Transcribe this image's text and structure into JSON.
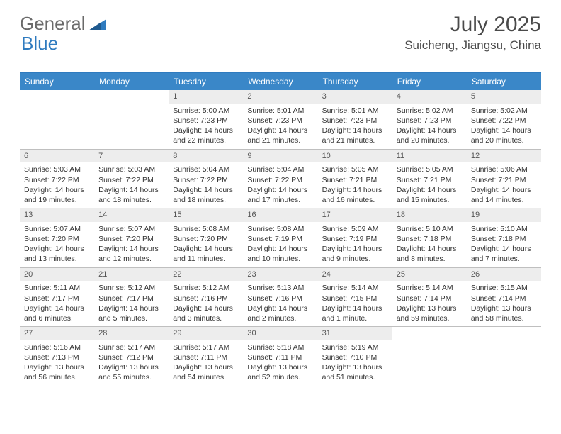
{
  "logo": {
    "part1": "General",
    "part2": "Blue"
  },
  "title": "July 2025",
  "location": "Suicheng, Jiangsu, China",
  "daynames": [
    "Sunday",
    "Monday",
    "Tuesday",
    "Wednesday",
    "Thursday",
    "Friday",
    "Saturday"
  ],
  "colors": {
    "header_bg": "#3a87c8",
    "header_text": "#ffffff",
    "daynum_bg": "#ededed",
    "border": "#bfbfbf",
    "logo_gray": "#6a6a6a",
    "logo_blue": "#2f7bbf"
  },
  "weeks": [
    [
      {
        "n": "",
        "sr": "",
        "ss": "",
        "dl": "",
        "empty": true
      },
      {
        "n": "",
        "sr": "",
        "ss": "",
        "dl": "",
        "empty": true
      },
      {
        "n": "1",
        "sr": "Sunrise: 5:00 AM",
        "ss": "Sunset: 7:23 PM",
        "dl": "Daylight: 14 hours and 22 minutes."
      },
      {
        "n": "2",
        "sr": "Sunrise: 5:01 AM",
        "ss": "Sunset: 7:23 PM",
        "dl": "Daylight: 14 hours and 21 minutes."
      },
      {
        "n": "3",
        "sr": "Sunrise: 5:01 AM",
        "ss": "Sunset: 7:23 PM",
        "dl": "Daylight: 14 hours and 21 minutes."
      },
      {
        "n": "4",
        "sr": "Sunrise: 5:02 AM",
        "ss": "Sunset: 7:23 PM",
        "dl": "Daylight: 14 hours and 20 minutes."
      },
      {
        "n": "5",
        "sr": "Sunrise: 5:02 AM",
        "ss": "Sunset: 7:22 PM",
        "dl": "Daylight: 14 hours and 20 minutes."
      }
    ],
    [
      {
        "n": "6",
        "sr": "Sunrise: 5:03 AM",
        "ss": "Sunset: 7:22 PM",
        "dl": "Daylight: 14 hours and 19 minutes."
      },
      {
        "n": "7",
        "sr": "Sunrise: 5:03 AM",
        "ss": "Sunset: 7:22 PM",
        "dl": "Daylight: 14 hours and 18 minutes."
      },
      {
        "n": "8",
        "sr": "Sunrise: 5:04 AM",
        "ss": "Sunset: 7:22 PM",
        "dl": "Daylight: 14 hours and 18 minutes."
      },
      {
        "n": "9",
        "sr": "Sunrise: 5:04 AM",
        "ss": "Sunset: 7:22 PM",
        "dl": "Daylight: 14 hours and 17 minutes."
      },
      {
        "n": "10",
        "sr": "Sunrise: 5:05 AM",
        "ss": "Sunset: 7:21 PM",
        "dl": "Daylight: 14 hours and 16 minutes."
      },
      {
        "n": "11",
        "sr": "Sunrise: 5:05 AM",
        "ss": "Sunset: 7:21 PM",
        "dl": "Daylight: 14 hours and 15 minutes."
      },
      {
        "n": "12",
        "sr": "Sunrise: 5:06 AM",
        "ss": "Sunset: 7:21 PM",
        "dl": "Daylight: 14 hours and 14 minutes."
      }
    ],
    [
      {
        "n": "13",
        "sr": "Sunrise: 5:07 AM",
        "ss": "Sunset: 7:20 PM",
        "dl": "Daylight: 14 hours and 13 minutes."
      },
      {
        "n": "14",
        "sr": "Sunrise: 5:07 AM",
        "ss": "Sunset: 7:20 PM",
        "dl": "Daylight: 14 hours and 12 minutes."
      },
      {
        "n": "15",
        "sr": "Sunrise: 5:08 AM",
        "ss": "Sunset: 7:20 PM",
        "dl": "Daylight: 14 hours and 11 minutes."
      },
      {
        "n": "16",
        "sr": "Sunrise: 5:08 AM",
        "ss": "Sunset: 7:19 PM",
        "dl": "Daylight: 14 hours and 10 minutes."
      },
      {
        "n": "17",
        "sr": "Sunrise: 5:09 AM",
        "ss": "Sunset: 7:19 PM",
        "dl": "Daylight: 14 hours and 9 minutes."
      },
      {
        "n": "18",
        "sr": "Sunrise: 5:10 AM",
        "ss": "Sunset: 7:18 PM",
        "dl": "Daylight: 14 hours and 8 minutes."
      },
      {
        "n": "19",
        "sr": "Sunrise: 5:10 AM",
        "ss": "Sunset: 7:18 PM",
        "dl": "Daylight: 14 hours and 7 minutes."
      }
    ],
    [
      {
        "n": "20",
        "sr": "Sunrise: 5:11 AM",
        "ss": "Sunset: 7:17 PM",
        "dl": "Daylight: 14 hours and 6 minutes."
      },
      {
        "n": "21",
        "sr": "Sunrise: 5:12 AM",
        "ss": "Sunset: 7:17 PM",
        "dl": "Daylight: 14 hours and 5 minutes."
      },
      {
        "n": "22",
        "sr": "Sunrise: 5:12 AM",
        "ss": "Sunset: 7:16 PM",
        "dl": "Daylight: 14 hours and 3 minutes."
      },
      {
        "n": "23",
        "sr": "Sunrise: 5:13 AM",
        "ss": "Sunset: 7:16 PM",
        "dl": "Daylight: 14 hours and 2 minutes."
      },
      {
        "n": "24",
        "sr": "Sunrise: 5:14 AM",
        "ss": "Sunset: 7:15 PM",
        "dl": "Daylight: 14 hours and 1 minute."
      },
      {
        "n": "25",
        "sr": "Sunrise: 5:14 AM",
        "ss": "Sunset: 7:14 PM",
        "dl": "Daylight: 13 hours and 59 minutes."
      },
      {
        "n": "26",
        "sr": "Sunrise: 5:15 AM",
        "ss": "Sunset: 7:14 PM",
        "dl": "Daylight: 13 hours and 58 minutes."
      }
    ],
    [
      {
        "n": "27",
        "sr": "Sunrise: 5:16 AM",
        "ss": "Sunset: 7:13 PM",
        "dl": "Daylight: 13 hours and 56 minutes."
      },
      {
        "n": "28",
        "sr": "Sunrise: 5:17 AM",
        "ss": "Sunset: 7:12 PM",
        "dl": "Daylight: 13 hours and 55 minutes."
      },
      {
        "n": "29",
        "sr": "Sunrise: 5:17 AM",
        "ss": "Sunset: 7:11 PM",
        "dl": "Daylight: 13 hours and 54 minutes."
      },
      {
        "n": "30",
        "sr": "Sunrise: 5:18 AM",
        "ss": "Sunset: 7:11 PM",
        "dl": "Daylight: 13 hours and 52 minutes."
      },
      {
        "n": "31",
        "sr": "Sunrise: 5:19 AM",
        "ss": "Sunset: 7:10 PM",
        "dl": "Daylight: 13 hours and 51 minutes."
      },
      {
        "n": "",
        "sr": "",
        "ss": "",
        "dl": "",
        "empty": true
      },
      {
        "n": "",
        "sr": "",
        "ss": "",
        "dl": "",
        "empty": true
      }
    ]
  ]
}
